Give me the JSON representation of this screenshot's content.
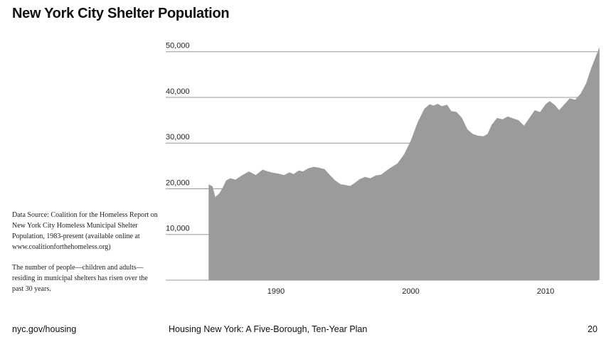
{
  "page": {
    "title": "New York City Shelter Population",
    "notes": [
      "Data Source: Coalition for the Homeless Report on New York City Homeless Municipal Shelter Population, 1983-present (available online at www.coalitionforthehomeless.org)",
      "The number of people—children and adults—residing in municipal shelters has risen over the past 30 years."
    ],
    "footer": {
      "left": "nyc.gov/housing",
      "center": "Housing New York: A Five-Borough, Ten-Year Plan",
      "right": "20"
    }
  },
  "colors": {
    "area": "#9b9b9b",
    "grid": "#9a9a9a",
    "text": "#111111"
  },
  "chart_data": {
    "type": "area",
    "title": "New York City Shelter Population",
    "xlabel": "",
    "ylabel": "",
    "xlim": [
      1983.3,
      2014.2
    ],
    "ylim": [
      0,
      51000
    ],
    "x_ticks": [
      1990,
      2000,
      2010
    ],
    "x_tick_labels": [
      "1990",
      "2000",
      "2010"
    ],
    "y_ticks": [
      10000,
      20000,
      30000,
      40000,
      50000
    ],
    "y_tick_labels": [
      "10,000",
      "20,000",
      "30,000",
      "40,000",
      "50,000"
    ],
    "grid": "horizontal",
    "series": [
      {
        "name": "Shelter population",
        "x": [
          1985.0,
          1985.3,
          1985.5,
          1985.8,
          1986.0,
          1986.3,
          1986.6,
          1987.0,
          1987.5,
          1988.0,
          1988.5,
          1989.0,
          1989.4,
          1989.8,
          1990.2,
          1990.6,
          1991.0,
          1991.3,
          1991.7,
          1992.0,
          1992.4,
          1992.8,
          1993.2,
          1993.6,
          1994.0,
          1994.4,
          1994.8,
          1995.2,
          1995.5,
          1995.8,
          1996.2,
          1996.6,
          1997.0,
          1997.4,
          1997.8,
          1998.2,
          1998.6,
          1999.0,
          1999.5,
          2000.0,
          2000.5,
          2001.0,
          2001.4,
          2001.7,
          2002.0,
          2002.3,
          2002.7,
          2003.0,
          2003.4,
          2003.8,
          2004.2,
          2004.6,
          2005.0,
          2005.4,
          2005.7,
          2006.0,
          2006.4,
          2006.8,
          2007.2,
          2007.6,
          2008.0,
          2008.4,
          2008.8,
          2009.2,
          2009.6,
          2010.0,
          2010.3,
          2010.7,
          2011.0,
          2011.4,
          2011.8,
          2012.2,
          2012.6,
          2013.0,
          2013.4,
          2013.8,
          2014.0
        ],
        "values": [
          21000,
          20500,
          18200,
          19000,
          20000,
          21800,
          22300,
          22000,
          23000,
          23800,
          23000,
          24200,
          23800,
          23500,
          23300,
          23000,
          23600,
          23200,
          24000,
          23800,
          24500,
          24800,
          24600,
          24300,
          23000,
          21800,
          21000,
          20800,
          20600,
          21200,
          22100,
          22600,
          22300,
          22900,
          23100,
          24000,
          24800,
          25500,
          27500,
          30500,
          34500,
          37500,
          38500,
          38200,
          38600,
          38100,
          38400,
          37000,
          36800,
          35500,
          33000,
          32000,
          31600,
          31500,
          32000,
          34000,
          35500,
          35200,
          35800,
          35400,
          35000,
          33800,
          35500,
          37200,
          36800,
          38500,
          39200,
          38300,
          37200,
          38500,
          39800,
          39500,
          40800,
          43000,
          46500,
          49500,
          51000
        ]
      }
    ]
  }
}
